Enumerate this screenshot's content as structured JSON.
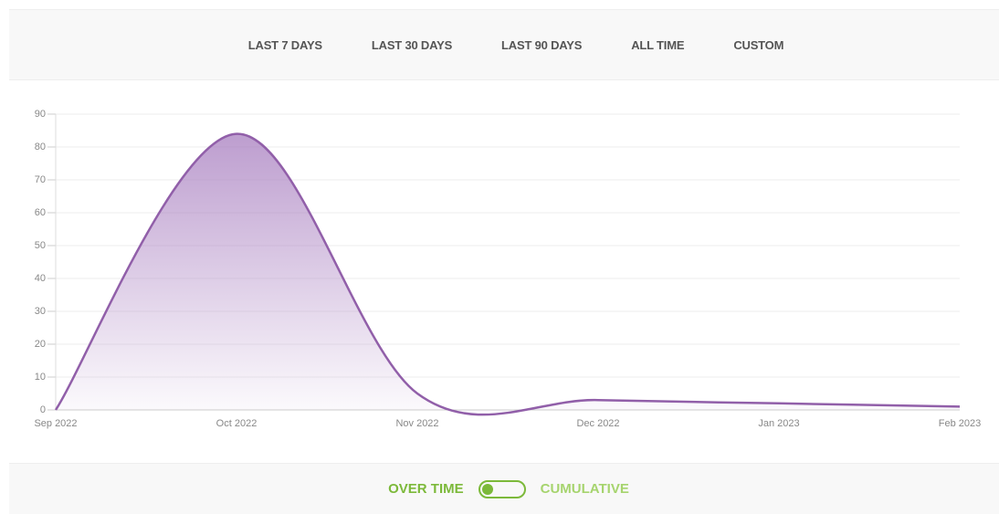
{
  "tabs": [
    "LAST 7 DAYS",
    "LAST 30 DAYS",
    "LAST 90 DAYS",
    "ALL TIME",
    "CUSTOM"
  ],
  "chart_data": {
    "type": "line",
    "categories": [
      "Sep 2022",
      "Oct 2022",
      "Nov 2022",
      "Dec 2022",
      "Jan 2023",
      "Feb 2023"
    ],
    "series": [
      {
        "color": "#915fa9",
        "values": [
          0,
          84,
          5,
          3,
          2,
          1
        ]
      }
    ],
    "ylim": [
      0,
      90
    ],
    "yticks": [
      0,
      10,
      20,
      30,
      40,
      50,
      60,
      70,
      80,
      90
    ],
    "grid": true
  },
  "toggle": {
    "left": "OVER TIME",
    "right": "CUMULATIVE"
  }
}
